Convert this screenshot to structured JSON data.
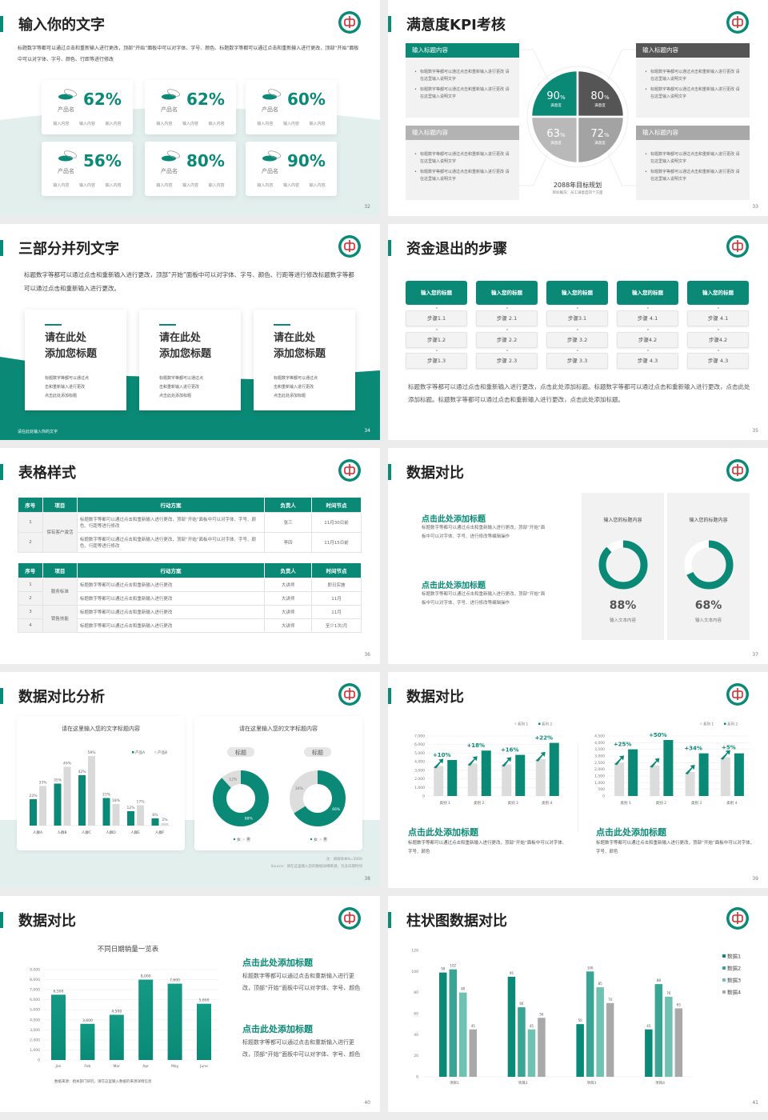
{
  "theme": {
    "accent": "#0a8a76",
    "dark_gray": "#555555",
    "light_gray": "#d9d9d9",
    "panel_gray": "#f2f2f2"
  },
  "slides": {
    "s32": {
      "title": "输入你的文字",
      "page": "32",
      "desc": "标题数字等都可以通过点击和重新输入进行更改，顶部“开始”面板中可以对字体、字号、颜色、标题数字等都可以通过点击和重新输入进行更改，顶部“开始”面板中可以对字体、字号、颜色、行距等进行修改",
      "cards": [
        {
          "pct": "62%",
          "name": "产品名",
          "items": [
            "输入内容",
            "输入内容",
            "输入内容"
          ]
        },
        {
          "pct": "62%",
          "name": "产品名",
          "items": [
            "输入内容",
            "输入内容",
            "输入内容"
          ]
        },
        {
          "pct": "60%",
          "name": "产品名",
          "items": [
            "输入内容",
            "输入内容",
            "输入内容"
          ]
        },
        {
          "pct": "56%",
          "name": "产品名",
          "items": [
            "输入内容",
            "输入内容",
            "输入内容"
          ]
        },
        {
          "pct": "80%",
          "name": "产品名",
          "items": [
            "输入内容",
            "输入内容",
            "输入内容"
          ]
        },
        {
          "pct": "90%",
          "name": "产品名",
          "items": [
            "输入内容",
            "输入内容",
            "输入内容"
          ]
        }
      ]
    },
    "s33": {
      "title": "满意度KPI考核",
      "page": "33",
      "boxes": [
        {
          "header": "输入标题内容",
          "bullets": [
            "标题数字等都可以通过点击和重新输入进行更改 请在这里输入说明文字",
            "标题数字等都可以通过点击和重新输入进行更改 请在这里输入说明文字"
          ]
        },
        {
          "header": "输入标题内容",
          "bullets": [
            "标题数字等都可以通过点击和重新输入进行更改 请在这里输入说明文字",
            "标题数字等都可以通过点击和重新输入进行更改 请在这里输入说明文字"
          ]
        },
        {
          "header": "输入标题内容",
          "bullets": [
            "标题数字等都可以通过点击和重新输入进行更改 请在这里输入说明文字",
            "标题数字等都可以通过点击和重新输入进行更改 请在这里输入说明文字"
          ]
        },
        {
          "header": "输入标题内容",
          "bullets": [
            "标题数字等都可以通过点击和重新输入进行更改 请在这里输入说明文字",
            "标题数字等都可以通过点击和重新输入进行更改 请在这里输入说明文字"
          ]
        }
      ],
      "quadrants": [
        {
          "value": "90",
          "unit": "%",
          "label": "满意度",
          "color": "#0a8a76"
        },
        {
          "value": "80",
          "unit": "%",
          "label": "满意度",
          "color": "#555555"
        },
        {
          "value": "63",
          "unit": "%",
          "label": "满意度",
          "color": "#b9b9b9"
        },
        {
          "value": "72",
          "unit": "%",
          "label": "满意度",
          "color": "#a3a3a3"
        }
      ],
      "center_title": "2088年目标规划",
      "center_sub": "目标概况：员工满意度四个方面"
    },
    "s34": {
      "title": "三部分并列文字",
      "page": "34",
      "desc": "标题数字等都可以通过点击和重新输入进行更改，顶部“开始”面板中可以对字体、字号、颜色、行距等进行修改标题数字等都可以通过点击和重新输入进行更改。",
      "cards": [
        {
          "title1": "请在此处",
          "title2": "添加您标题",
          "body": [
            "标题数字等都可以通过点",
            "击和重新输入进行更改",
            "点击此处添加标题"
          ]
        },
        {
          "title1": "请在此处",
          "title2": "添加您标题",
          "body": [
            "标题数字等都可以通过点",
            "击和重新输入进行更改",
            "点击此处添加标题"
          ]
        },
        {
          "title1": "请在此处",
          "title2": "添加您标题",
          "body": [
            "标题数字等都可以通过点",
            "击和重新输入进行更改",
            "点击此处添加标题"
          ]
        }
      ],
      "footer": "请在此处输入你的文字"
    },
    "s35": {
      "title": "资金退出的步骤",
      "page": "35",
      "columns": [
        {
          "header": "输入您的标题",
          "steps": [
            "步骤1.1",
            "步骤1.2",
            "步骤1.3"
          ]
        },
        {
          "header": "输入您的标题",
          "steps": [
            "步骤 2.1",
            "步骤 2.2",
            "步骤 2.3"
          ]
        },
        {
          "header": "输入您的标题",
          "steps": [
            "步骤3.1",
            "步骤 3.2",
            "步骤 3.3"
          ]
        },
        {
          "header": "输入您的标题",
          "steps": [
            "步骤 4.1",
            "步骤4.2",
            "步骤 4.3"
          ]
        },
        {
          "header": "输入您的标题",
          "steps": [
            "步骤 4.1",
            "步骤4.2",
            "步骤 4.3"
          ]
        }
      ],
      "desc": "标题数字等都可以通过点击和重新输入进行更改，点击此处添加标题。标题数字等都可以通过点击和重新输入进行更改，点击此处添加标题。标题数字等都可以通过点击和重新输入进行更改，点击此处添加标题。"
    },
    "s36": {
      "title": "表格样式",
      "page": "36",
      "headers": [
        "序号",
        "项目",
        "行动方案",
        "负责人",
        "时间节点"
      ],
      "table1": [
        {
          "group": "保有客户激活",
          "rows": [
            {
              "no": "1",
              "plan": "标题数字等都可以通过点击和重新输入进行更改，顶部“开始”面板中可以对字体、字号、颜色、行距等进行修改",
              "owner": "张三",
              "time": "11月30日前"
            },
            {
              "no": "2",
              "plan": "标题数字等都可以通过点击和重新输入进行更改，顶部“开始”面板中可以对字体、字号、颜色、行距等进行修改",
              "owner": "李四",
              "time": "11月15日前"
            }
          ]
        }
      ],
      "table2": [
        {
          "group": "服务标准",
          "rows": [
            {
              "no": "1",
              "plan": "标题数字等都可以通过点击和重新输入进行更改",
              "owner": "大讲师",
              "time": "即日实施"
            },
            {
              "no": "2",
              "plan": "标题数字等都可以通过点击和重新输入进行更改",
              "owner": "大讲师",
              "time": "11月"
            }
          ]
        },
        {
          "group": "销售技能",
          "rows": [
            {
              "no": "3",
              "plan": "标题数字等都可以通过点击和重新输入进行更改",
              "owner": "大讲师",
              "time": "11月"
            },
            {
              "no": "4",
              "plan": "标题数字等都可以通过点击和重新输入进行更改",
              "owner": "大讲师",
              "time": "至少1次/月"
            }
          ]
        }
      ]
    },
    "s37": {
      "title": "数据对比",
      "page": "37",
      "items": [
        {
          "title": "点击此处添加标题",
          "body": "标题数字等都可以通过点击和重新输入进行更改，顶部“开始”面板中可以对字体、字号、进行修改等编辑操作"
        },
        {
          "title": "点击此处添加标题",
          "body": "标题数字等都可以通过点击和重新输入进行更改，顶部“开始”面板中可以对字体、字号、进行修改等编辑操作"
        }
      ],
      "cards": [
        {
          "title": "输入您的标题内容",
          "value": 88,
          "label": "88%",
          "sub": "输入文本内容"
        },
        {
          "title": "输入您的标题内容",
          "value": 68,
          "label": "68%",
          "sub": "输入文本内容"
        }
      ]
    },
    "s38": {
      "title": "数据对比分析",
      "page": "38",
      "note": "注：调研样本N=5000",
      "source": "Source：请在这里输入您的数据详细来源，包含日期时间"
    },
    "s39": {
      "title": "数据对比",
      "page": "39",
      "texts": [
        {
          "title": "点击此处添加标题",
          "body": "标题数字等都可以通过点击和重新输入进行更改，顶部“开始”面板中可以对字体、字号、颜色"
        },
        {
          "title": "点击此处添加标题",
          "body": "标题数字等都可以通过点击和重新输入进行更改，顶部“开始”面板中可以对字体、字号、颜色"
        }
      ]
    },
    "s40": {
      "title": "数据对比",
      "page": "40",
      "source": "数据来源：相关部门研究，请在这里输入数据的来源详情信息",
      "texts": [
        {
          "title": "点击此处添加标题",
          "body": "标题数字等都可以通过点击和重新输入进行更改，顶部“开始”面板中可以对字体、字号、颜色"
        },
        {
          "title": "点击此处添加标题",
          "body": "标题数字等都可以通过点击和重新输入进行更改，顶部“开始”面板中可以对字体、字号、颜色"
        }
      ]
    },
    "s41": {
      "title": "柱状图数据对比",
      "page": "41"
    }
  },
  "chart_data": [
    {
      "id": "s38-bar",
      "type": "bar",
      "title": "请在这里输入您的文字标题内容",
      "categories": [
        "人群A",
        "人群B",
        "人群C",
        "人群D",
        "人群E",
        "人群F"
      ],
      "series": [
        {
          "name": "产品A",
          "values": [
            22,
            35,
            42,
            23,
            12,
            6
          ],
          "labels": [
            "22%",
            "35%",
            "42%",
            "23%",
            "12%",
            "6%"
          ],
          "color": "#0a8a76"
        },
        {
          "name": "产品B",
          "values": [
            33,
            49,
            58,
            18,
            17,
            2
          ],
          "labels": [
            "33%",
            "49%",
            "58%",
            "18%",
            "17%",
            "2%"
          ],
          "color": "#d9d9d9"
        }
      ],
      "legend": "top-right"
    },
    {
      "id": "s38-donuts",
      "type": "pie",
      "title": "请在这里输入您的文字标题内容",
      "charts": [
        {
          "tag": "标题",
          "slices": [
            {
              "name": "女",
              "value": 88,
              "label": "88%"
            },
            {
              "name": "男",
              "value": 12,
              "label": "12%"
            }
          ]
        },
        {
          "tag": "标题",
          "slices": [
            {
              "name": "女",
              "value": 66,
              "label": "66%"
            },
            {
              "name": "男",
              "value": 34,
              "label": "34%"
            }
          ]
        }
      ],
      "colors": [
        "#0a8a76",
        "#dddddd"
      ],
      "legend": "bottom"
    },
    {
      "id": "s39-left",
      "type": "bar",
      "categories": [
        "类别 1",
        "类别 2",
        "类别 3",
        "类别 4"
      ],
      "series": [
        {
          "name": "系列 1",
          "values": [
            3500,
            3800,
            3700,
            4300
          ]
        },
        {
          "name": "系列 2",
          "values": [
            4200,
            5300,
            4800,
            6200
          ]
        }
      ],
      "annotations": [
        "+10%",
        "+18%",
        "+16%",
        "+22%"
      ],
      "ylim": [
        0,
        7000
      ],
      "yticks": [
        "0",
        "1,000",
        "2,000",
        "3,000",
        "4,000",
        "5,000",
        "6,000",
        "7,000"
      ],
      "grid": true,
      "legend": "top-right"
    },
    {
      "id": "s39-right",
      "type": "bar",
      "categories": [
        "类别 1",
        "类别 2",
        "类别 3",
        "类别 4"
      ],
      "series": [
        {
          "name": "系列 1",
          "values": [
            2500,
            2300,
            1800,
            2900
          ]
        },
        {
          "name": "系列 2",
          "values": [
            3500,
            4200,
            3200,
            3200
          ]
        }
      ],
      "annotations": [
        "+25%",
        "+50%",
        "+34%",
        "+5%"
      ],
      "ylim": [
        0,
        4500
      ],
      "yticks": [
        "0",
        "500",
        "1,000",
        "1,500",
        "2,000",
        "2,500",
        "3,000",
        "3,500",
        "4,000",
        "4,500"
      ],
      "grid": true,
      "legend": "top-right"
    },
    {
      "id": "s40",
      "type": "bar",
      "title": "不同日期销量一览表",
      "categories": [
        "Jan",
        "Feb",
        "Mar",
        "Apr",
        "May",
        "June"
      ],
      "values": [
        6500,
        3600,
        4500,
        8000,
        7600,
        5600
      ],
      "labels": [
        "6,500",
        "3,600",
        "4,500",
        "8,000",
        "7,600",
        "5,600"
      ],
      "ylim": [
        0,
        9000
      ],
      "yticks": [
        "0",
        "1,000",
        "2,000",
        "3,000",
        "4,000",
        "5,000",
        "6,000",
        "7,000",
        "8,000",
        "9,000"
      ],
      "grid": true
    },
    {
      "id": "s41",
      "type": "bar",
      "categories": [
        "项目1",
        "项目2",
        "项目3",
        "项目4"
      ],
      "series": [
        {
          "name": "数据1",
          "values": [
            99,
            95,
            50,
            45
          ],
          "color": "#0a8a76"
        },
        {
          "name": "数据2",
          "values": [
            102,
            66,
            100,
            88
          ],
          "color": "#3aa595"
        },
        {
          "name": "数据3",
          "values": [
            80,
            45,
            85,
            76
          ],
          "color": "#6fc1b2"
        },
        {
          "name": "数据4",
          "values": [
            45,
            56,
            70,
            65
          ],
          "color": "#a9a9a9"
        }
      ],
      "ylim": [
        0,
        120
      ],
      "yticks": [
        "0",
        "20",
        "40",
        "60",
        "80",
        "100",
        "120"
      ],
      "legend": "right"
    }
  ]
}
